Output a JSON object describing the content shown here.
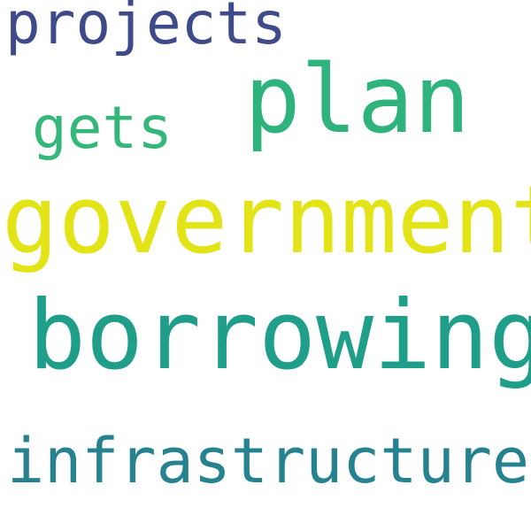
{
  "words": [
    {
      "text": "projects",
      "color": "#3e4a89"
    },
    {
      "text": "plan",
      "color": "#2eb37c"
    },
    {
      "text": "gets",
      "color": "#35b779"
    },
    {
      "text": "government",
      "color": "#e3e418"
    },
    {
      "text": "borrowing",
      "color": "#1f9e89"
    },
    {
      "text": "infrastructure",
      "color": "#26828e"
    }
  ]
}
